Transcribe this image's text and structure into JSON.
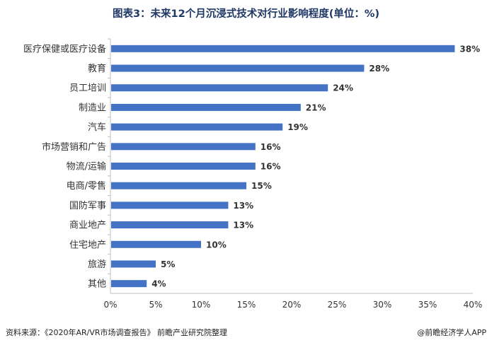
{
  "title": "图表3：未来12个月沉浸式技术对行业影响程度(单位：%)",
  "footer": {
    "source": "资料来源：《2020年AR/VR市场调查报告》 前瞻产业研究院整理",
    "brand": "@前瞻经济学人APP"
  },
  "colors": {
    "bar": "#4472c4",
    "axis": "#bfbfbf",
    "text": "#333333"
  },
  "chart_data": {
    "type": "bar",
    "orientation": "horizontal",
    "categories": [
      "医疗保健或医疗设备",
      "教育",
      "员工培训",
      "制造业",
      "汽车",
      "市场营销和广告",
      "物流/运输",
      "电商/零售",
      "国防军事",
      "商业地产",
      "住宅地产",
      "旅游",
      "其他"
    ],
    "values": [
      38,
      28,
      24,
      21,
      19,
      16,
      16,
      15,
      13,
      13,
      10,
      5,
      4
    ],
    "value_labels": [
      "38%",
      "28%",
      "24%",
      "21%",
      "19%",
      "16%",
      "16%",
      "15%",
      "13%",
      "13%",
      "10%",
      "5%",
      "4%"
    ],
    "xlim": [
      0,
      40
    ],
    "xticks": [
      "0%",
      "5%",
      "10%",
      "15%",
      "20%",
      "25%",
      "30%",
      "35%",
      "40%"
    ],
    "grid": false,
    "legend": "none"
  }
}
